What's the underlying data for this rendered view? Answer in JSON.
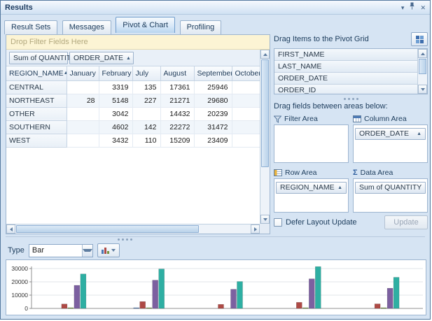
{
  "window": {
    "title": "Results"
  },
  "tabs": [
    {
      "label": "Result Sets"
    },
    {
      "label": "Messages"
    },
    {
      "label": "Pivot & Chart"
    },
    {
      "label": "Profiling"
    }
  ],
  "pivot": {
    "filter_drop_text": "Drop Filter Fields Here",
    "data_field": "Sum of QUANTITY",
    "column_field": "ORDER_DATE",
    "row_field": "REGION_NAME",
    "columns": [
      "January",
      "February",
      "July",
      "August",
      "September",
      "October"
    ],
    "rows": [
      {
        "name": "CENTRAL",
        "values": [
          "",
          "3319",
          "135",
          "17361",
          "25946",
          ""
        ]
      },
      {
        "name": "NORTHEAST",
        "values": [
          "28",
          "5148",
          "227",
          "21271",
          "29680",
          ""
        ]
      },
      {
        "name": "OTHER",
        "values": [
          "",
          "3042",
          "",
          "14432",
          "20239",
          ""
        ]
      },
      {
        "name": "SOUTHERN",
        "values": [
          "",
          "4602",
          "142",
          "22272",
          "31472",
          ""
        ]
      },
      {
        "name": "WEST",
        "values": [
          "",
          "3432",
          "110",
          "15209",
          "23409",
          ""
        ]
      }
    ]
  },
  "field_chooser": {
    "header": "Drag Items to the Pivot Grid",
    "fields": [
      "FIRST_NAME",
      "LAST_NAME",
      "ORDER_DATE",
      "ORDER_ID"
    ],
    "drag_label": "Drag fields between areas below:",
    "areas": {
      "filter": {
        "label": "Filter Area"
      },
      "column": {
        "label": "Column Area",
        "item": "ORDER_DATE"
      },
      "row": {
        "label": "Row Area",
        "item": "REGION_NAME"
      },
      "data": {
        "label": "Data Area",
        "item": "Sum of QUANTITY"
      }
    },
    "defer_label": "Defer Layout Update",
    "update_label": "Update"
  },
  "chart_panel": {
    "type_label": "Type",
    "type_value": "Bar"
  },
  "chart_data": {
    "type": "bar",
    "title": "",
    "xlabel": "",
    "ylabel": "",
    "categories": [
      "CENTRAL",
      "NORTHEAST",
      "OTHER",
      "SOUTHERN",
      "WEST"
    ],
    "series": [
      {
        "name": "January",
        "color": "#4c79b5",
        "values": [
          0,
          28,
          0,
          0,
          0
        ]
      },
      {
        "name": "February",
        "color": "#ae4a45",
        "values": [
          3319,
          5148,
          3042,
          4602,
          3432
        ]
      },
      {
        "name": "July",
        "color": "#73943f",
        "values": [
          135,
          227,
          0,
          142,
          110
        ]
      },
      {
        "name": "August",
        "color": "#7c60a0",
        "values": [
          17361,
          21271,
          14432,
          22272,
          15209
        ]
      },
      {
        "name": "September",
        "color": "#2eafa3",
        "values": [
          25946,
          29680,
          20239,
          31472,
          23409
        ]
      }
    ],
    "ylim": [
      0,
      30000
    ],
    "yticks": [
      0,
      10000,
      20000,
      30000
    ],
    "legend": "none",
    "grid": true
  }
}
